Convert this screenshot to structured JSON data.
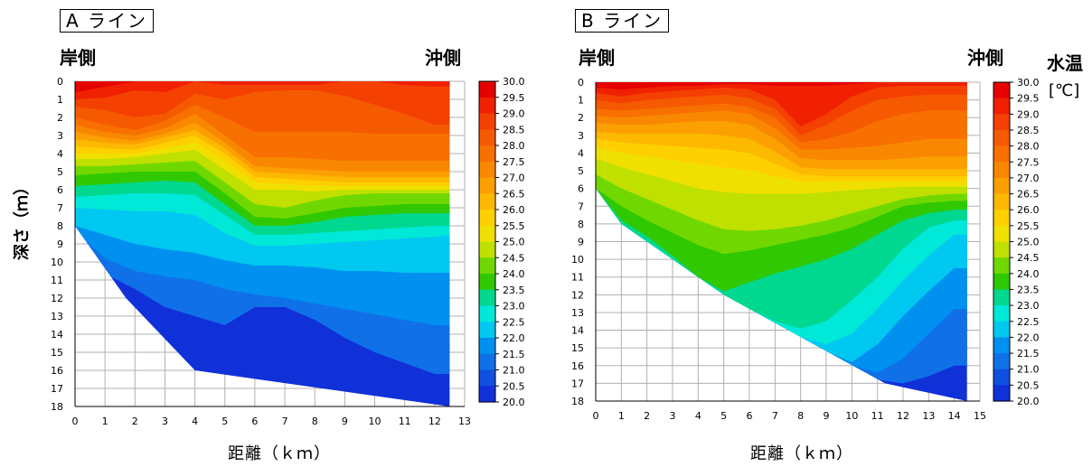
{
  "chart_data": [
    {
      "type": "heatmap",
      "title": "A ライン",
      "left_label": "岸側",
      "right_label": "沖側",
      "xlabel": "距離（ｋｍ）",
      "ylabel": "深さ（ｍ）",
      "xlim": [
        0,
        13
      ],
      "ylim": [
        0,
        18
      ],
      "x_ticks": [
        "0",
        "1",
        "2",
        "3",
        "4",
        "5",
        "6",
        "7",
        "8",
        "9",
        "10",
        "11",
        "12",
        "13"
      ],
      "y_ticks": [
        "0",
        "1",
        "2",
        "3",
        "4",
        "5",
        "6",
        "7",
        "8",
        "9",
        "10",
        "11",
        "12",
        "13",
        "14",
        "15",
        "16",
        "17",
        "18"
      ],
      "bottom_profile": [
        [
          0,
          8
        ],
        [
          1.7,
          12
        ],
        [
          4,
          16
        ],
        [
          12.5,
          18
        ]
      ],
      "x_extent": 12.5,
      "isotherm_depths": [
        {
          "t": 30.0,
          "d": [
            0.6,
            0.3,
            0.0,
            0.0,
            0.0,
            0.0,
            0.0,
            0.0,
            0.0,
            0.0,
            0.0,
            0.0,
            0.0,
            0.0
          ]
        },
        {
          "t": 29.0,
          "d": [
            1.0,
            0.9,
            0.5,
            0.6,
            0.0,
            0.2,
            0.2,
            0.2,
            0.2,
            0.0,
            0.0,
            0.2,
            0.3,
            0.3
          ]
        },
        {
          "t": 28.5,
          "d": [
            1.4,
            1.6,
            2.0,
            1.8,
            0.7,
            1.0,
            0.6,
            0.5,
            0.5,
            0.8,
            1.3,
            1.8,
            2.4,
            2.4
          ]
        },
        {
          "t": 28.0,
          "d": [
            2.0,
            2.4,
            2.7,
            2.2,
            1.3,
            2.0,
            2.8,
            2.8,
            2.8,
            2.8,
            2.9,
            2.9,
            2.9,
            2.9
          ]
        },
        {
          "t": 27.5,
          "d": [
            2.4,
            2.8,
            3.0,
            2.6,
            1.8,
            3.0,
            4.2,
            4.2,
            4.3,
            4.4,
            4.4,
            4.4,
            4.4,
            4.4
          ]
        },
        {
          "t": 27.0,
          "d": [
            2.8,
            3.1,
            3.3,
            2.9,
            2.3,
            3.4,
            4.7,
            4.8,
            4.9,
            5.0,
            5.0,
            5.0,
            5.0,
            5.0
          ]
        },
        {
          "t": 26.5,
          "d": [
            3.2,
            3.4,
            3.5,
            3.1,
            2.7,
            3.7,
            5.0,
            5.1,
            5.2,
            5.3,
            5.3,
            5.3,
            5.3,
            5.3
          ]
        },
        {
          "t": 26.0,
          "d": [
            3.6,
            3.7,
            3.8,
            3.4,
            3.0,
            4.0,
            5.3,
            5.4,
            5.5,
            5.6,
            5.6,
            5.6,
            5.6,
            5.6
          ]
        },
        {
          "t": 25.5,
          "d": [
            4.0,
            4.0,
            4.0,
            3.7,
            3.4,
            4.4,
            5.6,
            5.7,
            5.8,
            5.8,
            5.8,
            5.8,
            5.8,
            5.8
          ]
        },
        {
          "t": 25.0,
          "d": [
            4.3,
            4.3,
            4.2,
            4.0,
            3.8,
            4.9,
            6.0,
            6.0,
            6.1,
            6.0,
            6.0,
            6.0,
            6.0,
            6.0
          ]
        },
        {
          "t": 24.5,
          "d": [
            4.7,
            4.7,
            4.6,
            4.5,
            4.4,
            5.6,
            6.8,
            7.0,
            6.6,
            6.3,
            6.2,
            6.2,
            6.2,
            6.2
          ]
        },
        {
          "t": 24.0,
          "d": [
            5.2,
            5.1,
            5.0,
            5.0,
            5.0,
            6.2,
            7.5,
            7.6,
            7.3,
            7.0,
            6.9,
            6.8,
            6.8,
            6.8
          ]
        },
        {
          "t": 23.5,
          "d": [
            5.8,
            5.7,
            5.6,
            5.5,
            5.6,
            6.8,
            8.0,
            8.0,
            7.8,
            7.5,
            7.4,
            7.3,
            7.3,
            7.3
          ]
        },
        {
          "t": 23.0,
          "d": [
            6.4,
            6.3,
            6.2,
            6.2,
            6.3,
            7.4,
            8.5,
            8.5,
            8.4,
            8.3,
            8.2,
            8.1,
            8.0,
            8.0
          ]
        },
        {
          "t": 22.5,
          "d": [
            7.0,
            7.1,
            7.2,
            7.2,
            7.4,
            8.4,
            9.1,
            9.1,
            9.0,
            8.9,
            8.8,
            8.7,
            8.6,
            8.5
          ]
        },
        {
          "t": 22.0,
          "d": [
            8.0,
            8.5,
            9.0,
            9.3,
            9.5,
            9.9,
            10.2,
            10.2,
            10.3,
            10.5,
            10.5,
            10.6,
            10.6,
            10.6
          ]
        },
        {
          "t": 21.5,
          "d": [
            9.0,
            9.8,
            10.5,
            10.8,
            11.0,
            11.5,
            11.8,
            12.0,
            12.3,
            12.6,
            12.9,
            13.2,
            13.5,
            13.5
          ]
        },
        {
          "t": 21.0,
          "d": [
            10.0,
            11.0,
            11.5,
            12.5,
            13.0,
            13.5,
            12.5,
            12.5,
            13.2,
            14.2,
            15.0,
            15.6,
            16.2,
            16.2
          ]
        }
      ]
    },
    {
      "type": "heatmap",
      "title": "B ライン",
      "left_label": "岸側",
      "right_label": "沖側",
      "xlabel": "距離（ｋｍ）",
      "ylabel": "",
      "xlim": [
        0,
        15
      ],
      "ylim": [
        0,
        18
      ],
      "x_ticks": [
        "0",
        "1",
        "2",
        "3",
        "4",
        "5",
        "6",
        "7",
        "8",
        "9",
        "10",
        "11",
        "12",
        "13",
        "14",
        "15"
      ],
      "y_ticks": [
        "0",
        "1",
        "2",
        "3",
        "4",
        "5",
        "6",
        "7",
        "8",
        "9",
        "10",
        "11",
        "12",
        "13",
        "14",
        "15",
        "16",
        "17",
        "18"
      ],
      "bottom_profile": [
        [
          0,
          6
        ],
        [
          1,
          8
        ],
        [
          5,
          12
        ],
        [
          11.3,
          17
        ],
        [
          14.5,
          18
        ]
      ],
      "x_extent": 14.5,
      "isotherm_depths": [
        {
          "t": 30.0,
          "d": [
            0.3,
            0.4,
            0.3,
            0.2,
            0.2,
            0.1,
            0.1,
            0.2,
            0.2,
            0.2,
            0.1,
            0.0,
            0.0,
            0.0,
            0.0,
            0.0
          ]
        },
        {
          "t": 29.0,
          "d": [
            0.6,
            0.8,
            0.6,
            0.5,
            0.4,
            0.3,
            0.4,
            1.0,
            2.5,
            1.8,
            0.8,
            0.3,
            0.2,
            0.2,
            0.2,
            0.2
          ]
        },
        {
          "t": 28.5,
          "d": [
            1.0,
            1.2,
            1.0,
            0.9,
            0.8,
            0.7,
            0.9,
            1.5,
            3.0,
            2.4,
            1.6,
            1.0,
            0.8,
            0.7,
            0.7,
            0.7
          ]
        },
        {
          "t": 28.0,
          "d": [
            1.5,
            1.6,
            1.5,
            1.4,
            1.3,
            1.2,
            1.4,
            2.0,
            3.4,
            3.2,
            2.8,
            2.2,
            1.8,
            1.6,
            1.6,
            1.6
          ]
        },
        {
          "t": 27.5,
          "d": [
            1.9,
            2.0,
            1.9,
            1.8,
            1.7,
            1.6,
            1.8,
            2.6,
            3.8,
            3.8,
            3.7,
            3.6,
            3.4,
            3.2,
            3.2,
            3.2
          ]
        },
        {
          "t": 27.0,
          "d": [
            2.3,
            2.4,
            2.4,
            2.3,
            2.2,
            2.2,
            2.4,
            3.2,
            4.3,
            4.4,
            4.4,
            4.4,
            4.3,
            4.2,
            4.2,
            4.2
          ]
        },
        {
          "t": 26.5,
          "d": [
            2.8,
            2.9,
            2.9,
            2.9,
            2.9,
            3.0,
            3.2,
            3.9,
            4.8,
            4.9,
            4.9,
            4.9,
            4.9,
            4.9,
            4.9,
            4.9
          ]
        },
        {
          "t": 26.0,
          "d": [
            3.2,
            3.4,
            3.5,
            3.6,
            3.7,
            3.8,
            4.0,
            4.6,
            5.2,
            5.3,
            5.3,
            5.3,
            5.3,
            5.3,
            5.3,
            5.3
          ]
        },
        {
          "t": 25.5,
          "d": [
            3.7,
            4.0,
            4.2,
            4.4,
            4.6,
            4.8,
            5.0,
            5.3,
            5.6,
            5.6,
            5.6,
            5.6,
            5.6,
            5.6,
            5.6,
            5.6
          ]
        },
        {
          "t": 25.0,
          "d": [
            4.3,
            4.8,
            5.2,
            5.6,
            6.0,
            6.2,
            6.3,
            6.3,
            6.3,
            6.2,
            6.1,
            6.0,
            5.9,
            5.9,
            5.9,
            5.9
          ]
        },
        {
          "t": 24.5,
          "d": [
            5.2,
            6.0,
            6.6,
            7.2,
            7.8,
            8.3,
            8.4,
            8.3,
            8.1,
            7.8,
            7.4,
            7.0,
            6.6,
            6.4,
            6.3,
            6.3
          ]
        },
        {
          "t": 24.0,
          "d": [
            6.0,
            7.0,
            7.8,
            8.5,
            9.2,
            9.7,
            9.5,
            9.2,
            8.9,
            8.6,
            8.2,
            7.6,
            7.0,
            6.8,
            6.7,
            6.7
          ]
        },
        {
          "t": 23.5,
          "d": [
            6.0,
            7.8,
            8.7,
            9.8,
            11.0,
            11.8,
            11.3,
            10.8,
            10.4,
            10.0,
            9.4,
            8.6,
            7.8,
            7.4,
            7.2,
            7.2
          ]
        },
        {
          "t": 23.0,
          "d": [
            6.0,
            8.0,
            9.0,
            10.0,
            11.0,
            12.0,
            12.8,
            13.5,
            13.9,
            13.5,
            12.3,
            11.0,
            9.4,
            8.2,
            7.8,
            7.8
          ]
        },
        {
          "t": 22.5,
          "d": [
            6.0,
            8.0,
            9.0,
            10.0,
            11.0,
            12.0,
            12.8,
            13.6,
            14.4,
            14.8,
            14.2,
            12.8,
            11.2,
            9.8,
            8.6,
            8.6
          ]
        },
        {
          "t": 22.0,
          "d": [
            6.0,
            8.0,
            9.0,
            10.0,
            11.0,
            12.0,
            12.8,
            13.6,
            14.4,
            15.2,
            15.8,
            14.8,
            13.2,
            11.8,
            10.5,
            10.5
          ]
        },
        {
          "t": 21.5,
          "d": [
            6.0,
            8.0,
            9.0,
            10.0,
            11.0,
            12.0,
            12.8,
            13.6,
            14.4,
            15.2,
            16.0,
            16.4,
            15.6,
            14.2,
            12.8,
            12.8
          ]
        },
        {
          "t": 21.0,
          "d": [
            6.0,
            8.0,
            9.0,
            10.0,
            11.0,
            12.0,
            12.8,
            13.6,
            14.4,
            15.2,
            16.0,
            16.8,
            17.0,
            16.6,
            16.0,
            16.0
          ]
        }
      ]
    }
  ],
  "colorbar": {
    "title": "水温",
    "unit": "[℃]",
    "labels": [
      "30.0",
      "29.5",
      "29.0",
      "28.5",
      "28.0",
      "27.5",
      "27.0",
      "26.5",
      "26.0",
      "25.5",
      "25.0",
      "24.5",
      "24.0",
      "23.5",
      "23.0",
      "22.5",
      "22.0",
      "21.5",
      "21.0",
      "20.5",
      "20.0"
    ],
    "colors": [
      "#e60000",
      "#f02000",
      "#f44000",
      "#f65a00",
      "#f87000",
      "#f98800",
      "#fba000",
      "#fdb800",
      "#fed000",
      "#f0e000",
      "#c0e000",
      "#70d800",
      "#30c800",
      "#00d890",
      "#00e8d8",
      "#00c8f0",
      "#0090f0",
      "#1070e8",
      "#1050e0",
      "#1030d8",
      "#0010c8"
    ]
  }
}
